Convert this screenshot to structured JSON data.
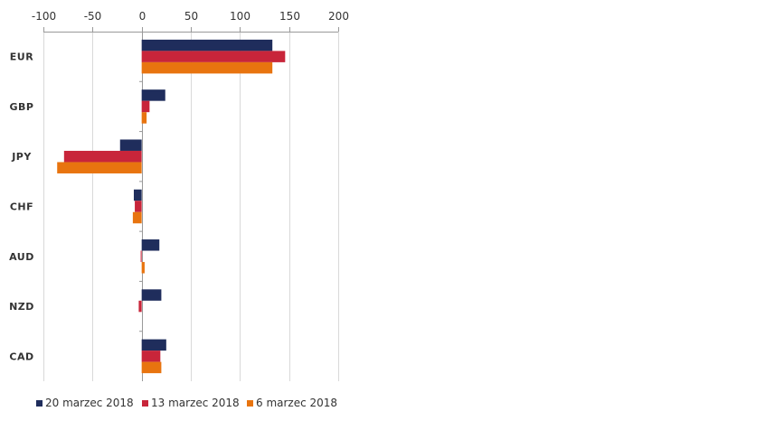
{
  "chart_data": {
    "type": "bar",
    "orientation": "horizontal",
    "categories": [
      "EUR",
      "GBP",
      "JPY",
      "CHF",
      "AUD",
      "NZD",
      "CAD"
    ],
    "series": [
      {
        "name": "20 marzec 2018",
        "color": "#1f2d5c",
        "values": [
          133,
          24,
          -22,
          -8,
          18,
          20,
          25
        ]
      },
      {
        "name": "13 marzec 2018",
        "color": "#c8253a",
        "values": [
          146,
          8,
          -79,
          -7,
          -1,
          -3,
          19
        ]
      },
      {
        "name": "6 marzec 2018",
        "color": "#e8740f",
        "values": [
          133,
          5,
          -86,
          -9,
          3,
          0,
          20
        ]
      }
    ],
    "xlim": [
      -100,
      200
    ],
    "xticks": [
      -100,
      -50,
      0,
      50,
      100,
      150,
      200
    ],
    "tick_labels": [
      "-100",
      "-50",
      "0",
      "50",
      "100",
      "150",
      "200"
    ],
    "grid": true,
    "axis_position": "top",
    "legend_position": "bottom"
  }
}
